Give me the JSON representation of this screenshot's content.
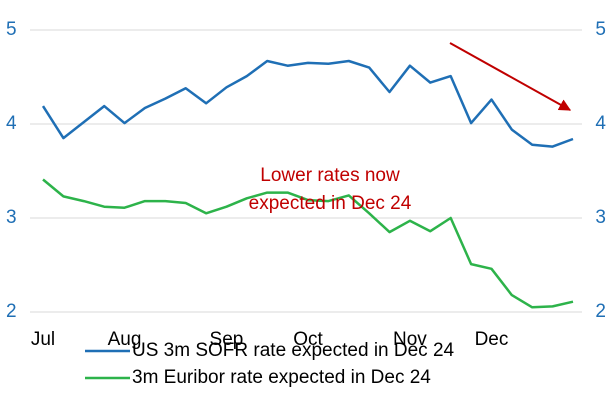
{
  "chart_data": {
    "type": "line",
    "categories": [
      "Jul",
      null,
      null,
      null,
      "Aug",
      null,
      null,
      null,
      null,
      "Sep",
      null,
      null,
      null,
      "Oct",
      null,
      null,
      null,
      null,
      "Nov",
      null,
      null,
      null,
      "Dec",
      null,
      null,
      null,
      null
    ],
    "series": [
      {
        "name": "US 3m SOFR rate expected in Dec 24",
        "color": "#1f6fb5",
        "values": [
          4.19,
          3.85,
          4.02,
          4.19,
          4.01,
          4.17,
          4.27,
          4.38,
          4.22,
          4.39,
          4.51,
          4.67,
          4.62,
          4.65,
          4.64,
          4.67,
          4.6,
          4.34,
          4.62,
          4.44,
          4.51,
          4.01,
          4.26,
          3.94,
          3.78,
          3.76,
          3.84
        ]
      },
      {
        "name": "3m Euribor rate expected in Dec 24",
        "color": "#2db34a",
        "values": [
          3.41,
          3.23,
          3.18,
          3.12,
          3.11,
          3.18,
          3.18,
          3.16,
          3.05,
          3.12,
          3.21,
          3.27,
          3.27,
          3.19,
          3.18,
          3.24,
          3.05,
          2.85,
          2.97,
          2.86,
          3.0,
          2.51,
          2.46,
          2.18,
          2.05,
          2.06,
          2.11
        ]
      }
    ],
    "annotation": [
      "Lower rates now",
      "expected in Dec 24"
    ],
    "annotation_color": "#c00000",
    "ylim": [
      2,
      5
    ],
    "yticks": [
      2,
      3,
      4,
      5
    ],
    "y2lim": [
      2,
      5
    ],
    "y2ticks": [
      2,
      3,
      4,
      5
    ],
    "grid": true
  }
}
